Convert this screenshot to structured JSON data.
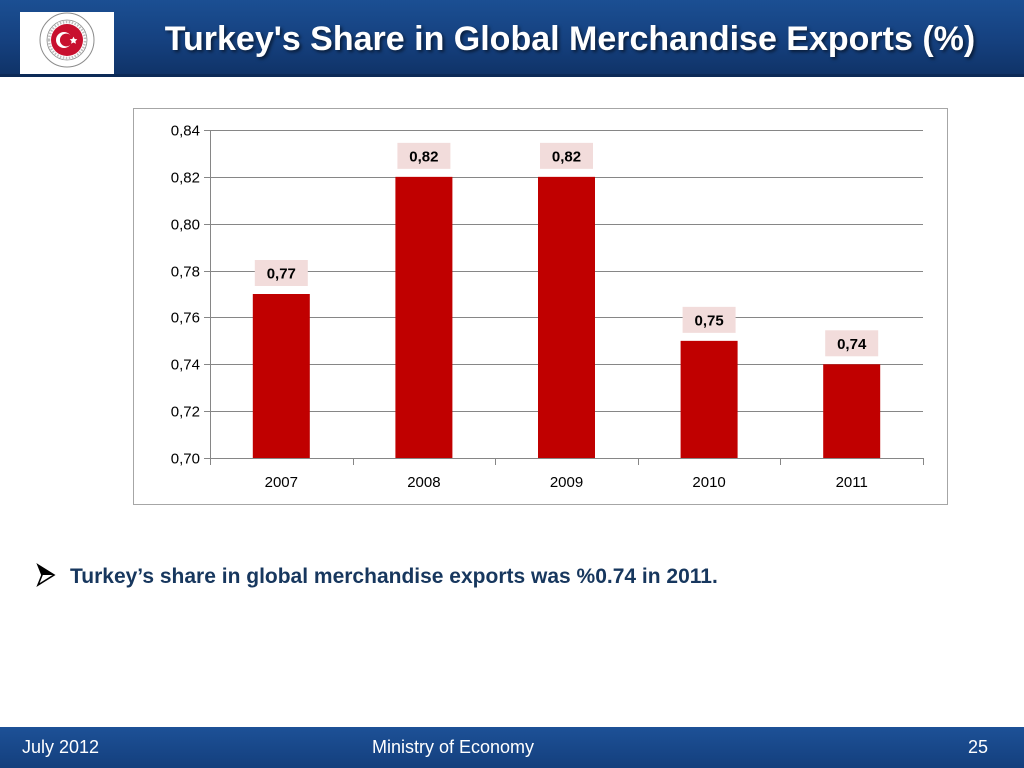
{
  "header": {
    "title": "Turkey's Share in Global Merchandise Exports (%)",
    "logo_text": "REPUBLIC OF TURKEY · MINISTRY OF ECONOMY",
    "logo_icon": "crescent-star-seal-icon"
  },
  "colors": {
    "banner": "#15407e",
    "bar": "#c00000",
    "label_bg": "#f2dcdb",
    "bullet_text": "#17375e"
  },
  "chart_data": {
    "type": "bar",
    "title": "",
    "xlabel": "",
    "ylabel": "",
    "categories": [
      "2007",
      "2008",
      "2009",
      "2010",
      "2011"
    ],
    "values": [
      0.77,
      0.82,
      0.82,
      0.75,
      0.74
    ],
    "data_labels": [
      "0,77",
      "0,82",
      "0,82",
      "0,75",
      "0,74"
    ],
    "ylim": [
      0.7,
      0.84
    ],
    "yticks": [
      0.7,
      0.72,
      0.74,
      0.76,
      0.78,
      0.8,
      0.82,
      0.84
    ],
    "ytick_labels": [
      "0,70",
      "0,72",
      "0,74",
      "0,76",
      "0,78",
      "0,80",
      "0,82",
      "0,84"
    ],
    "grid": true,
    "legend": "none"
  },
  "bullet": {
    "icon": "arrow-bullet-icon",
    "text": "Turkey’s share in global merchandise exports was %0.74 in 2011."
  },
  "footer": {
    "date": "July 2012",
    "organization": "Ministry of Economy",
    "page_number": "25"
  }
}
